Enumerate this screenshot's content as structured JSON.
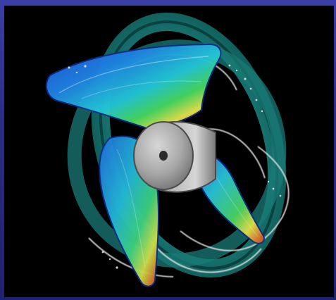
{
  "scene": {
    "subject": "propeller-with-duct-ring",
    "palette": {
      "frame": "#2b2f8f",
      "background": "#000000",
      "ring": "#1f8f8a",
      "ring_edge": "#0f5a57",
      "blade_low": "#1d4fd8",
      "blade_mid": "#23c6d6",
      "blade_high": "#e3e14a",
      "blade_hot": "#d23a1e",
      "hub": "#bdbdbd",
      "hub_dark": "#6c6c6c",
      "trace": "#e6e6e6"
    }
  }
}
